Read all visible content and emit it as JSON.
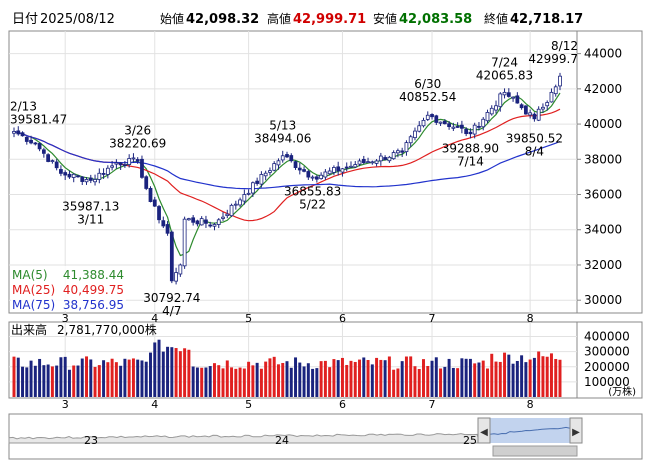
{
  "header": {
    "date_label": "日付",
    "date": "2025/08/12",
    "open_label": "始値",
    "open": "42,098.32",
    "high_label": "高値",
    "high": "42,999.71",
    "low_label": "安値",
    "low": "42,083.58",
    "close_label": "終値",
    "close": "42,718.17"
  },
  "colors": {
    "up": "#ffffff",
    "down": "#1a237e",
    "ma5": "#2e8b2e",
    "ma25": "#e02020",
    "ma75": "#2233cc",
    "volume_up": "#e02020",
    "volume_down": "#1a237e",
    "high_text": "#d00000",
    "low_text": "#007000",
    "navigator_fill": "#8faee0"
  },
  "legend": [
    {
      "label": "MA(5)",
      "value": "41,388.44",
      "color": "#2e8b2e"
    },
    {
      "label": "MA(25)",
      "value": "40,499.75",
      "color": "#e02020"
    },
    {
      "label": "MA(75)",
      "value": "38,756.95",
      "color": "#2233cc"
    }
  ],
  "volume": {
    "label": "出来高",
    "value": "2,781,770,000株",
    "unit": "(万株)",
    "ticks": [
      "400000",
      "300000",
      "200000",
      "100000"
    ]
  },
  "navigator": {
    "labels": [
      "23",
      "24",
      "25"
    ]
  },
  "chart_data": {
    "type": "candlestick",
    "ylim": [
      29500,
      45000
    ],
    "yticks": [
      "44000",
      "42000",
      "40000",
      "38000",
      "36000",
      "34000",
      "32000",
      "30000"
    ],
    "xticks": [
      "3",
      "4",
      "5",
      "6",
      "7",
      "8"
    ],
    "xtick_dates": [
      "2025-03-03",
      "2025-04-01",
      "2025-05-01",
      "2025-06-02",
      "2025-07-01",
      "2025-08-01"
    ],
    "anchors": [
      {
        "date": "2025-02-13",
        "close": 39581
      },
      {
        "date": "2025-02-20",
        "close": 38900
      },
      {
        "date": "2025-02-28",
        "close": 37200
      },
      {
        "date": "2025-03-11",
        "close": 36800
      },
      {
        "date": "2025-03-19",
        "close": 37800
      },
      {
        "date": "2025-03-26",
        "close": 37900
      },
      {
        "date": "2025-03-31",
        "close": 35600
      },
      {
        "date": "2025-04-04",
        "close": 33800
      },
      {
        "date": "2025-04-07",
        "close": 31100
      },
      {
        "date": "2025-04-09",
        "close": 32000
      },
      {
        "date": "2025-04-10",
        "close": 34600
      },
      {
        "date": "2025-04-21",
        "close": 34300
      },
      {
        "date": "2025-04-30",
        "close": 36000
      },
      {
        "date": "2025-05-13",
        "close": 38200
      },
      {
        "date": "2025-05-22",
        "close": 36990
      },
      {
        "date": "2025-06-05",
        "close": 37700
      },
      {
        "date": "2025-06-20",
        "close": 38400
      },
      {
        "date": "2025-06-30",
        "close": 40500
      },
      {
        "date": "2025-07-14",
        "close": 39450
      },
      {
        "date": "2025-07-24",
        "close": 41800
      },
      {
        "date": "2025-08-04",
        "close": 40300
      },
      {
        "date": "2025-08-08",
        "close": 41800
      },
      {
        "date": "2025-08-12",
        "close": 42718
      }
    ],
    "annotations": [
      {
        "date": "2025-02-13",
        "value": 39581.47,
        "lines": [
          "2/13",
          "39581.47"
        ],
        "position": "above"
      },
      {
        "date": "2025-03-11",
        "value": 35987.13,
        "lines": [
          "35987.13",
          "3/11"
        ],
        "position": "below"
      },
      {
        "date": "2025-03-26",
        "value": 38220.69,
        "lines": [
          "3/26",
          "38220.69"
        ],
        "position": "above"
      },
      {
        "date": "2025-04-07",
        "value": 30792.74,
        "lines": [
          "30792.74",
          "4/7"
        ],
        "position": "below"
      },
      {
        "date": "2025-05-13",
        "value": 38494.06,
        "lines": [
          "5/13",
          "38494.06"
        ],
        "position": "above"
      },
      {
        "date": "2025-05-22",
        "value": 36855.83,
        "lines": [
          "36855.83",
          "5/22"
        ],
        "position": "below"
      },
      {
        "date": "2025-06-30",
        "value": 40852.54,
        "lines": [
          "6/30",
          "40852.54"
        ],
        "position": "above"
      },
      {
        "date": "2025-07-14",
        "value": 39288.9,
        "lines": [
          "39288.90",
          "7/14"
        ],
        "position": "below"
      },
      {
        "date": "2025-07-24",
        "value": 42065.83,
        "lines": [
          "7/24",
          "42065.83"
        ],
        "position": "above"
      },
      {
        "date": "2025-08-04",
        "value": 39850.52,
        "lines": [
          "39850.52",
          "8/4"
        ],
        "position": "below"
      },
      {
        "date": "2025-08-12",
        "value": 42999.71,
        "lines": [
          "8/12",
          "42999.7"
        ],
        "position": "above"
      }
    ],
    "volume_ylim": [
      0,
      450000
    ]
  }
}
